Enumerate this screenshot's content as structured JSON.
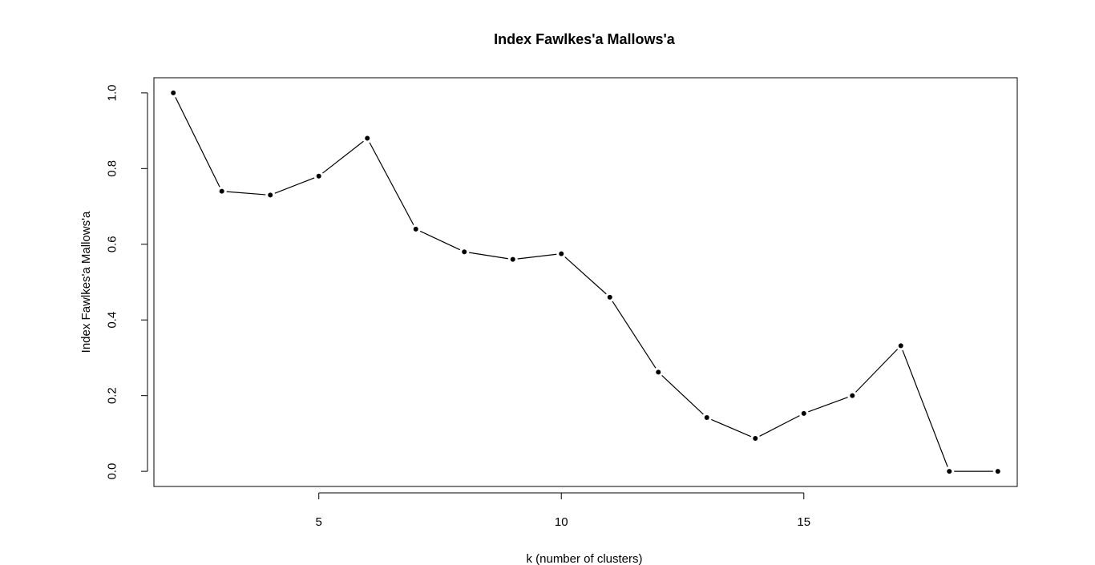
{
  "chart_data": {
    "type": "line",
    "title": "Index Fawlkes'a Mallows'a",
    "xlabel": "k (number of clusters)",
    "ylabel": "Index Fawlkes'a Mallows'a",
    "x": [
      2,
      3,
      4,
      5,
      6,
      7,
      8,
      9,
      10,
      11,
      12,
      13,
      14,
      15,
      16,
      17,
      18,
      19
    ],
    "series": [
      {
        "values": [
          1.0,
          0.74,
          0.73,
          0.78,
          0.88,
          0.64,
          0.58,
          0.56,
          0.575,
          0.46,
          0.262,
          0.142,
          0.087,
          0.153,
          0.2,
          0.332,
          0.0,
          0.0
        ]
      }
    ],
    "xlim": [
      1.6,
      19.4
    ],
    "ylim": [
      -0.04,
      1.04
    ],
    "xticks": [
      5,
      10,
      15
    ],
    "yticks": [
      0.0,
      0.2,
      0.4,
      0.6,
      0.8,
      1.0
    ],
    "xtick_labels": [
      "5",
      "10",
      "15"
    ],
    "ytick_labels": [
      "0.0",
      "0.2",
      "0.4",
      "0.6",
      "0.8",
      "1.0"
    ],
    "grid": false,
    "legend": "none"
  }
}
